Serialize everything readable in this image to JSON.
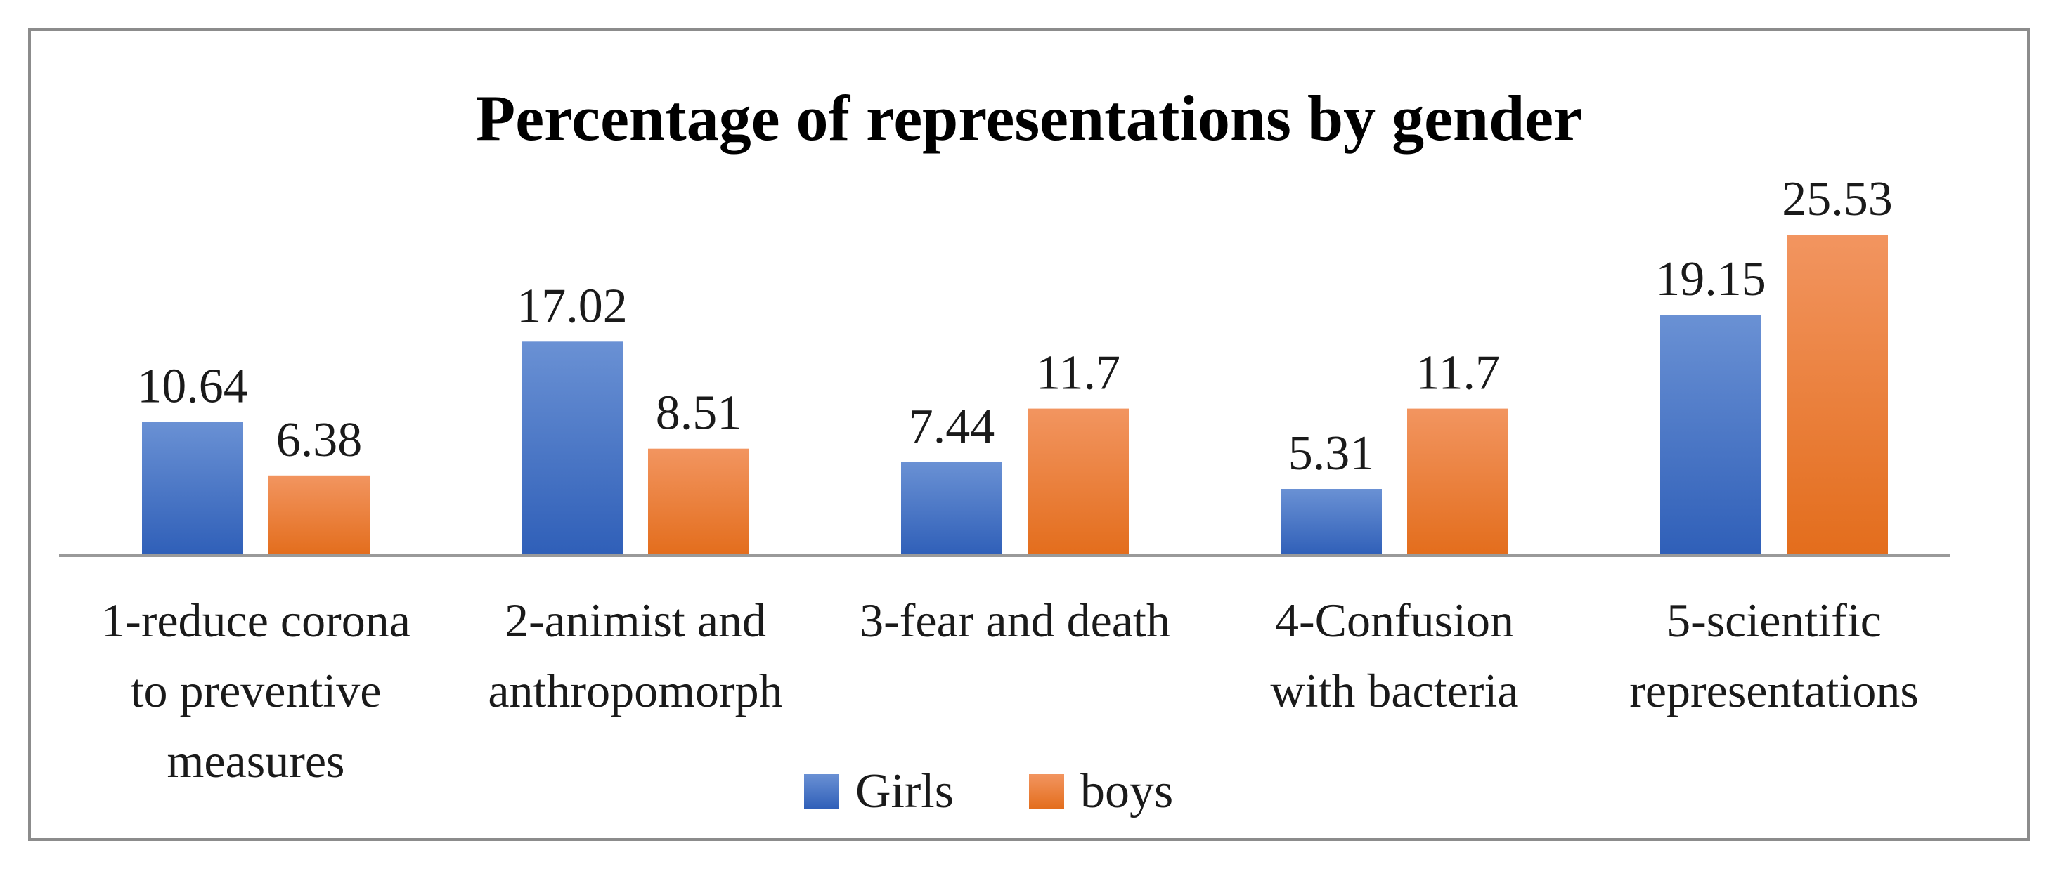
{
  "chart_data": {
    "type": "bar",
    "title": "Percentage of representations by gender",
    "xlabel": "",
    "ylabel": "",
    "ylim": [
      0,
      28
    ],
    "grid": false,
    "legend_position": "bottom",
    "categories": [
      [
        "1-reduce corona",
        "to preventive",
        "measures"
      ],
      [
        "2-animist and",
        "anthropomorph"
      ],
      [
        "3-fear and death"
      ],
      [
        "4-Confusion",
        "with bacteria"
      ],
      [
        "5-scientific",
        "representations"
      ]
    ],
    "series": [
      {
        "name": "Girls",
        "color": "#4472c4",
        "values": [
          10.64,
          17.02,
          7.44,
          5.31,
          19.15
        ],
        "labels": [
          "10.64",
          "17.02",
          "7.44",
          "5.31",
          "19.15"
        ]
      },
      {
        "name": "boys",
        "color": "#ed7d31",
        "values": [
          6.38,
          8.51,
          11.7,
          11.7,
          25.53
        ],
        "labels": [
          "6.38",
          "8.51",
          "11.7",
          "11.7",
          "25.53"
        ]
      }
    ]
  }
}
